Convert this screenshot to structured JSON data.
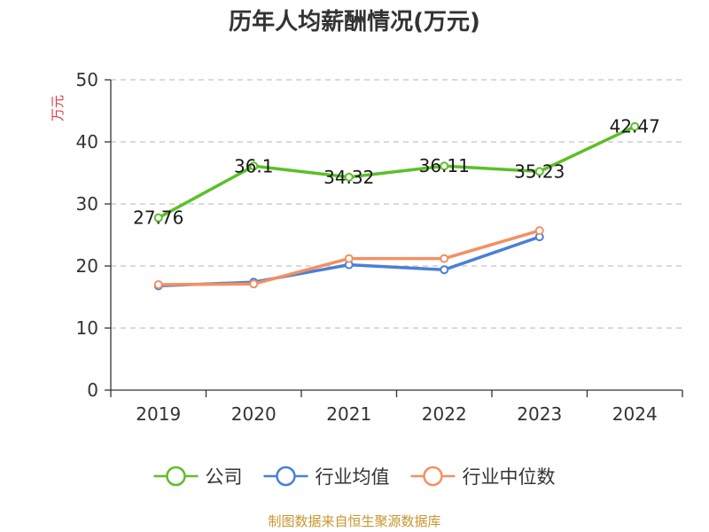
{
  "chart_data": {
    "type": "line",
    "title": "历年人均薪酬情况(万元)",
    "ylabel": "万元",
    "xlabel": "",
    "ylim": [
      0,
      50
    ],
    "yticks": [
      0,
      10,
      20,
      30,
      40,
      50
    ],
    "categories": [
      "2019",
      "2020",
      "2021",
      "2022",
      "2023",
      "2024"
    ],
    "grid": "horizontal-dashed",
    "legend_position": "bottom",
    "series": [
      {
        "name": "公司",
        "color": "#5cbf2a",
        "values": [
          27.76,
          36.1,
          34.32,
          36.11,
          35.23,
          42.47
        ],
        "labels": [
          "27.76",
          "36.1",
          "34.32",
          "36.11",
          "35.23",
          "42.47"
        ]
      },
      {
        "name": "行业均值",
        "color": "#4a7fd6",
        "values": [
          16.8,
          17.4,
          20.2,
          19.4,
          24.7,
          null
        ]
      },
      {
        "name": "行业中位数",
        "color": "#f39062",
        "values": [
          17.0,
          17.1,
          21.2,
          21.2,
          25.7,
          null
        ]
      }
    ]
  },
  "source": "制图数据来自恒生聚源数据库"
}
